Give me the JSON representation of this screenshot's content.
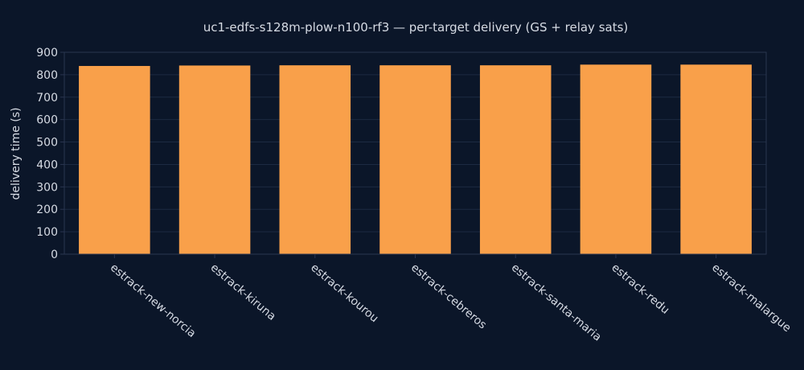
{
  "chart_data": {
    "type": "bar",
    "title": "uc1-edfs-s128m-plow-n100-rf3 — per-target delivery (GS + relay sats)",
    "xlabel": "",
    "ylabel": "delivery time (s)",
    "categories": [
      "estrack-new-norcia",
      "estrack-kiruna",
      "estrack-kourou",
      "estrack-cebreros",
      "estrack-santa-maria",
      "estrack-redu",
      "estrack-malargue"
    ],
    "values": [
      839,
      841,
      842,
      842,
      842,
      845,
      845
    ],
    "ylim": [
      0,
      900
    ],
    "yticks": [
      0,
      100,
      200,
      300,
      400,
      500,
      600,
      700,
      800,
      900
    ],
    "bar_color": "#f9a04a",
    "background": "#0b1629",
    "grid": true,
    "legend": "none"
  }
}
